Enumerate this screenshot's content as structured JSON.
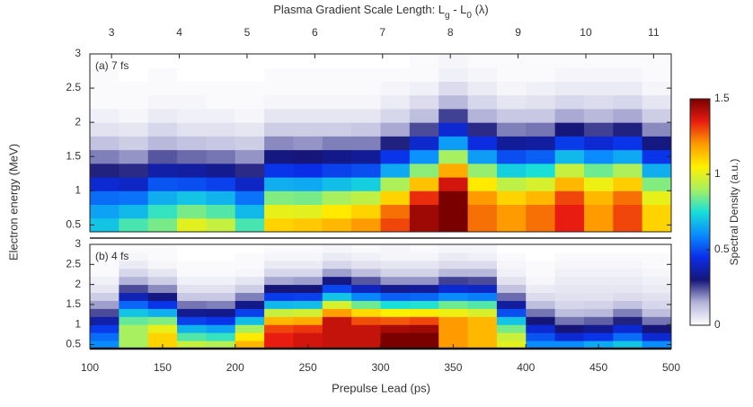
{
  "chart_data": {
    "type": "heatmap",
    "x2label": [
      {
        "text": "Plasma Gradient Scale Length: L"
      },
      {
        "text": "g",
        "subscript": true
      },
      {
        "text": " - L"
      },
      {
        "text": "0",
        "subscript": true
      },
      {
        "text": " (λ)"
      }
    ],
    "xlabel": "Prepulse Lead (ps)",
    "ylabel": "Electron energy (MeV)",
    "xlim": [
      100,
      500
    ],
    "xticks": [
      100,
      150,
      200,
      250,
      300,
      350,
      400,
      450,
      500
    ],
    "x2lim": [
      2.68,
      11.26
    ],
    "x2ticks": [
      3,
      4,
      5,
      6,
      7,
      8,
      9,
      10,
      11
    ],
    "ylim": [
      0.4,
      3
    ],
    "yticks": [
      0.5,
      1,
      1.5,
      2,
      2.5,
      3
    ],
    "x_bins": [
      100,
      120,
      140,
      160,
      180,
      200,
      220,
      240,
      260,
      280,
      300,
      320,
      340,
      360,
      380,
      400,
      420,
      440,
      460,
      480,
      500
    ],
    "y_bins": [
      0.4,
      0.6,
      0.8,
      1.0,
      1.2,
      1.4,
      1.6,
      1.8,
      2.0,
      2.2,
      2.4,
      2.6,
      2.8,
      3.0
    ],
    "colorbar": {
      "label": "Spectral Density (a.u.)",
      "lim": [
        0,
        1.5
      ],
      "ticks": [
        0,
        0.5,
        1,
        1.5
      ],
      "colormap": [
        "#ffffff",
        "#b4b4da",
        "#16167a",
        "#0a2ee8",
        "#0a8cff",
        "#18e0d8",
        "#a8f060",
        "#fff000",
        "#ff9a00",
        "#e81c10",
        "#7a0000"
      ]
    },
    "panels": [
      {
        "label": "(a) 7 fs",
        "values": [
          [
            0.7,
            0.64,
            0.55,
            0.42,
            0.29,
            0.2,
            0.12,
            0.06,
            0.03,
            0.01,
            0.01,
            0.01,
            0
          ],
          [
            0.8,
            0.68,
            0.56,
            0.4,
            0.28,
            0.18,
            0.1,
            0.05,
            0.02,
            0.01,
            0.01,
            0,
            0
          ],
          [
            0.85,
            0.78,
            0.66,
            0.51,
            0.36,
            0.24,
            0.14,
            0.08,
            0.04,
            0.02,
            0.01,
            0.01,
            0
          ],
          [
            1,
            0.85,
            0.7,
            0.5,
            0.35,
            0.22,
            0.12,
            0.06,
            0.03,
            0.02,
            0.01,
            0,
            0
          ],
          [
            0.95,
            0.81,
            0.67,
            0.48,
            0.33,
            0.21,
            0.11,
            0.06,
            0.03,
            0.01,
            0.01,
            0,
            0
          ],
          [
            0.8,
            0.68,
            0.56,
            0.4,
            0.28,
            0.18,
            0.1,
            0.05,
            0.02,
            0.01,
            0.01,
            0,
            0
          ],
          [
            1.1,
            1.01,
            0.86,
            0.66,
            0.46,
            0.31,
            0.19,
            0.1,
            0.05,
            0.02,
            0.01,
            0.01,
            0
          ],
          [
            1.12,
            1.0,
            0.85,
            0.65,
            0.45,
            0.3,
            0.18,
            0.1,
            0.05,
            0.02,
            0.01,
            0.01,
            0
          ],
          [
            1.15,
            1.06,
            0.9,
            0.69,
            0.48,
            0.32,
            0.2,
            0.1,
            0.05,
            0.02,
            0.01,
            0.01,
            0
          ],
          [
            1.2,
            1.1,
            0.94,
            0.72,
            0.5,
            0.34,
            0.2,
            0.11,
            0.05,
            0.02,
            0.01,
            0.01,
            0
          ],
          [
            1.3,
            1.25,
            1.1,
            0.91,
            0.65,
            0.46,
            0.29,
            0.16,
            0.08,
            0.04,
            0.02,
            0.01,
            0
          ],
          [
            1.45,
            1.45,
            1.33,
            1.13,
            0.87,
            0.61,
            0.41,
            0.25,
            0.13,
            0.07,
            0.03,
            0.01,
            0.01
          ],
          [
            1.5,
            1.5,
            1.5,
            1.38,
            1.17,
            0.9,
            0.63,
            0.42,
            0.26,
            0.14,
            0.07,
            0.03,
            0.02
          ],
          [
            1.25,
            1.25,
            1.2,
            1.06,
            0.88,
            0.63,
            0.44,
            0.28,
            0.15,
            0.08,
            0.04,
            0.02,
            0.01
          ],
          [
            1.2,
            1.2,
            1.1,
            0.94,
            0.72,
            0.5,
            0.34,
            0.2,
            0.11,
            0.05,
            0.02,
            0.01,
            0.01
          ],
          [
            1.25,
            1.25,
            1.15,
            0.98,
            0.75,
            0.53,
            0.35,
            0.21,
            0.11,
            0.06,
            0.03,
            0.01,
            0.01
          ],
          [
            1.35,
            1.35,
            1.3,
            1.15,
            0.95,
            0.68,
            0.47,
            0.3,
            0.16,
            0.08,
            0.04,
            0.02,
            0.01
          ],
          [
            1.2,
            1.2,
            1.15,
            1.02,
            0.84,
            0.6,
            0.42,
            0.26,
            0.14,
            0.07,
            0.04,
            0.02,
            0.01
          ],
          [
            1.3,
            1.3,
            1.25,
            1.11,
            0.91,
            0.65,
            0.46,
            0.29,
            0.16,
            0.08,
            0.04,
            0.02,
            0.01
          ],
          [
            1.1,
            1.1,
            1.01,
            0.86,
            0.66,
            0.46,
            0.31,
            0.19,
            0.1,
            0.05,
            0.02,
            0.01,
            0.01
          ]
        ]
      },
      {
        "label": "(b) 4 fs",
        "values": [
          [
            0.6,
            0.55,
            0.47,
            0.36,
            0.25,
            0.17,
            0.1,
            0.05,
            0.03,
            0.01,
            0.01,
            0.01,
            0
          ],
          [
            0.9,
            0.9,
            0.9,
            0.83,
            0.7,
            0.54,
            0.38,
            0.25,
            0.15,
            0.08,
            0.04,
            0.02,
            0.01
          ],
          [
            1.1,
            1.1,
            1.01,
            0.86,
            0.66,
            0.46,
            0.31,
            0.19,
            0.1,
            0.05,
            0.02,
            0.01,
            0.01
          ],
          [
            0.95,
            0.81,
            0.67,
            0.48,
            0.33,
            0.21,
            0.11,
            0.06,
            0.03,
            0.01,
            0.01,
            0,
            0
          ],
          [
            0.92,
            0.78,
            0.64,
            0.46,
            0.32,
            0.2,
            0.11,
            0.06,
            0.03,
            0.01,
            0.01,
            0,
            0
          ],
          [
            1.15,
            1.06,
            0.9,
            0.69,
            0.48,
            0.32,
            0.2,
            0.1,
            0.05,
            0.02,
            0.01,
            0.01,
            0
          ],
          [
            1.35,
            1.35,
            1.3,
            1.15,
            0.95,
            0.68,
            0.47,
            0.3,
            0.16,
            0.08,
            0.04,
            0.02,
            0.01
          ],
          [
            1.38,
            1.38,
            1.32,
            1.17,
            0.97,
            0.69,
            0.48,
            0.3,
            0.17,
            0.08,
            0.04,
            0.02,
            0.01
          ],
          [
            1.4,
            1.4,
            1.4,
            1.4,
            1.19,
            0.98,
            0.7,
            0.49,
            0.31,
            0.17,
            0.08,
            0.04,
            0.02
          ],
          [
            1.4,
            1.4,
            1.4,
            1.29,
            1.09,
            0.84,
            0.59,
            0.39,
            0.24,
            0.13,
            0.06,
            0.03,
            0.01
          ],
          [
            1.5,
            1.5,
            1.44,
            1.28,
            1.05,
            0.75,
            0.53,
            0.33,
            0.18,
            0.09,
            0.05,
            0.02,
            0.02
          ],
          [
            1.5,
            1.5,
            1.45,
            1.3,
            1.06,
            0.76,
            0.54,
            0.34,
            0.18,
            0.09,
            0.05,
            0.02,
            0.01
          ],
          [
            1.2,
            1.2,
            1.2,
            1.2,
            1.02,
            0.84,
            0.6,
            0.42,
            0.26,
            0.14,
            0.07,
            0.04,
            0.02
          ],
          [
            1.15,
            1.15,
            1.15,
            1.15,
            0.98,
            0.81,
            0.58,
            0.4,
            0.25,
            0.14,
            0.07,
            0.03,
            0.02
          ],
          [
            1,
            0.96,
            0.85,
            0.7,
            0.5,
            0.35,
            0.22,
            0.12,
            0.06,
            0.03,
            0.02,
            0.01,
            0
          ],
          [
            0.6,
            0.51,
            0.42,
            0.3,
            0.21,
            0.13,
            0.07,
            0.04,
            0.02,
            0.01,
            0.01,
            0,
            0
          ],
          [
            0.6,
            0.42,
            0.3,
            0.21,
            0.13,
            0.08,
            0.06,
            0.05,
            0.04,
            0.03,
            0.02,
            0.01,
            0
          ],
          [
            0.65,
            0.46,
            0.33,
            0.23,
            0.14,
            0.09,
            0.06,
            0.05,
            0.04,
            0.03,
            0.02,
            0.01,
            0
          ],
          [
            0.7,
            0.55,
            0.42,
            0.29,
            0.2,
            0.12,
            0.07,
            0.05,
            0.04,
            0.03,
            0.02,
            0.01,
            0
          ],
          [
            0.6,
            0.42,
            0.3,
            0.21,
            0.13,
            0.08,
            0.06,
            0.04,
            0.03,
            0.02,
            0.01,
            0.01,
            0
          ]
        ]
      }
    ]
  }
}
